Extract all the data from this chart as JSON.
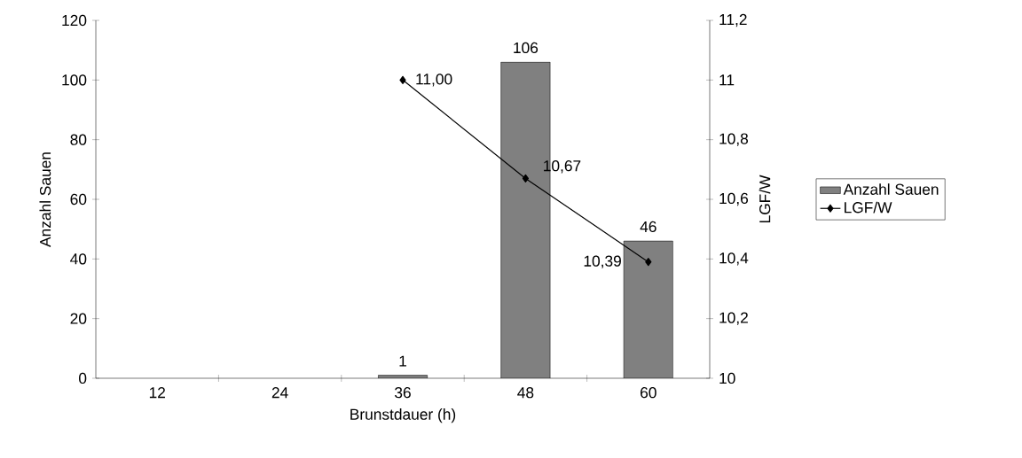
{
  "chart_data": {
    "type": "bar",
    "xlabel": "Brunstdauer (h)",
    "ylabel": "Anzahl Sauen",
    "y2label": "LGF/W",
    "categories": [
      "12",
      "24",
      "36",
      "48",
      "60"
    ],
    "series": [
      {
        "name": "Anzahl Sauen",
        "color": "#808080",
        "values": [
          null,
          null,
          1,
          106,
          46
        ],
        "value_labels": [
          null,
          null,
          "1",
          "106",
          "46"
        ]
      },
      {
        "name": "LGF/W",
        "type": "line",
        "axis": "y2",
        "color": "#000000",
        "marker": "diamond",
        "values": [
          null,
          null,
          11.0,
          10.67,
          10.39
        ],
        "value_labels": [
          null,
          null,
          "11,00",
          "10,67",
          "10,39"
        ]
      }
    ],
    "ylim": [
      0,
      120
    ],
    "yticks": [
      0,
      20,
      40,
      60,
      80,
      100,
      120
    ],
    "y2lim": [
      10,
      11.2
    ],
    "y2ticks": [
      10,
      {
        "value": 10.2,
        "label": "10,2"
      },
      {
        "value": 10.4,
        "label": "10,4"
      },
      {
        "value": 10.6,
        "label": "10,6"
      },
      {
        "value": 10.8,
        "label": "10,8"
      },
      11,
      {
        "value": 11.2,
        "label": "11,2"
      }
    ],
    "legend": "right",
    "grid": false
  }
}
